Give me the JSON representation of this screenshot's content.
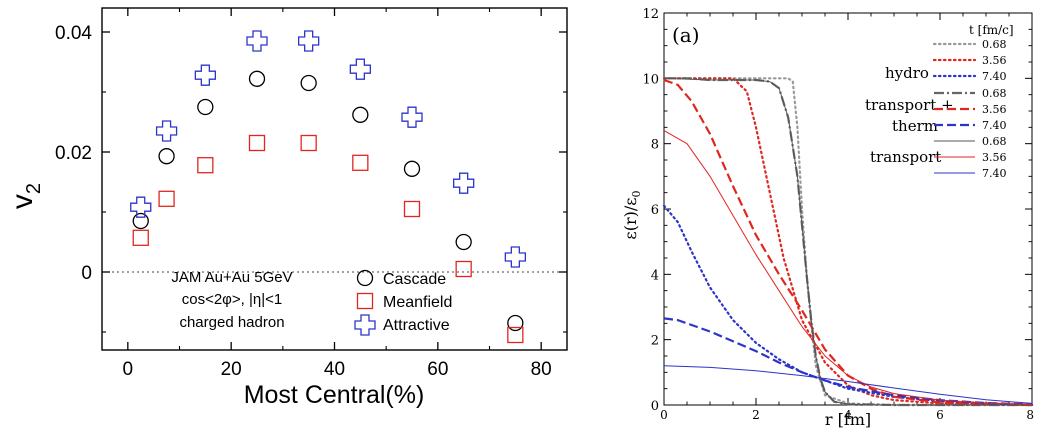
{
  "chart_data": [
    {
      "type": "scatter",
      "xlabel": "Most Central(%)",
      "ylabel": "v",
      "ylabel_sub": "2",
      "xlim": [
        -5,
        85
      ],
      "ylim": [
        -0.013,
        0.044
      ],
      "xticks": [
        0,
        20,
        40,
        60,
        80
      ],
      "yticks": [
        0,
        0.02,
        0.04
      ],
      "ytick_labels": [
        "0",
        "0.02",
        "0.04"
      ],
      "zero_line": true,
      "annotation": [
        "JAM Au+Au 5GeV",
        "cos<2φ>, |η|<1",
        "charged hadron"
      ],
      "legend_position": "bottom-center",
      "series": [
        {
          "name": "Cascade",
          "marker": "circle",
          "color": "#000000",
          "x": [
            2.5,
            7.5,
            15,
            25,
            35,
            45,
            55,
            65,
            75
          ],
          "y": [
            0.0085,
            0.0193,
            0.0275,
            0.0322,
            0.0315,
            0.0262,
            0.0172,
            0.005,
            -0.0085
          ]
        },
        {
          "name": "Meanfield",
          "marker": "square",
          "color": "#e0261f",
          "x": [
            2.5,
            7.5,
            15,
            25,
            35,
            45,
            55,
            65,
            75
          ],
          "y": [
            0.0057,
            0.0122,
            0.0178,
            0.0215,
            0.0215,
            0.0182,
            0.0105,
            0.0005,
            -0.0105
          ]
        },
        {
          "name": "Attractive",
          "marker": "cross",
          "color": "#2b35c8",
          "x": [
            2.5,
            7.5,
            15,
            25,
            35,
            45,
            55,
            65,
            75
          ],
          "y": [
            0.0108,
            0.0235,
            0.0328,
            0.0385,
            0.0385,
            0.0338,
            0.0258,
            0.0148,
            0.0025
          ]
        }
      ]
    },
    {
      "type": "line",
      "panel_label": "(a)",
      "xlabel": "r [fm]",
      "ylabel": "ε(r)/ε",
      "ylabel_sub": "0",
      "xlim": [
        0,
        8
      ],
      "ylim": [
        0,
        12
      ],
      "xticks": [
        0,
        2,
        4,
        6,
        8
      ],
      "yticks": [
        0,
        2,
        4,
        6,
        8,
        10,
        12
      ],
      "legend_title": "t [fm/c]",
      "legend_groups": [
        "hydro",
        "transport +",
        "therm",
        "transport"
      ],
      "legend_position": "top-right",
      "series": [
        {
          "name": "0.68",
          "group": "hydro",
          "color": "#9a9a9a",
          "style": "dot",
          "x": [
            0,
            1,
            2,
            2.6,
            2.7,
            2.8,
            2.9,
            3.0,
            3.1,
            3.2,
            3.3,
            3.5,
            4,
            5,
            6,
            8
          ],
          "y": [
            10,
            10,
            10,
            10,
            10,
            9.9,
            8.5,
            6,
            4,
            2.5,
            1.2,
            0.3,
            0.05,
            0,
            0,
            0
          ]
        },
        {
          "name": "3.56",
          "group": "hydro",
          "color": "#e0261f",
          "style": "dot",
          "x": [
            0,
            1,
            1.5,
            1.8,
            2.0,
            2.3,
            2.6,
            3.0,
            3.5,
            4,
            4.5,
            5,
            6,
            8
          ],
          "y": [
            10,
            10,
            10,
            9.6,
            8.5,
            6.5,
            4.5,
            2.6,
            1.3,
            0.6,
            0.3,
            0.15,
            0.05,
            0
          ]
        },
        {
          "name": "7.40",
          "group": "hydro",
          "color": "#2b35c8",
          "style": "dot",
          "x": [
            0,
            0.3,
            0.6,
            1.0,
            1.5,
            2.0,
            2.5,
            3.0,
            3.5,
            4,
            5,
            6,
            7,
            8
          ],
          "y": [
            6.1,
            5.6,
            4.7,
            3.6,
            2.6,
            1.9,
            1.4,
            1.0,
            0.75,
            0.5,
            0.25,
            0.12,
            0.05,
            0
          ]
        },
        {
          "name": "0.68",
          "group": "transport + therm",
          "color": "#666666",
          "style": "dashdot",
          "x": [
            0,
            0.5,
            1,
            1.5,
            2.0,
            2.3,
            2.5,
            2.7,
            2.9,
            3.0,
            3.1,
            3.2,
            3.3,
            3.4,
            3.5,
            3.7,
            4,
            5,
            8
          ],
          "y": [
            10,
            10,
            9.95,
            9.95,
            9.95,
            9.9,
            9.7,
            8.8,
            7,
            5.5,
            4,
            2.6,
            1.5,
            0.8,
            0.4,
            0.1,
            0.02,
            0,
            0
          ]
        },
        {
          "name": "3.56",
          "group": "transport + therm",
          "color": "#e0261f",
          "style": "dash",
          "x": [
            0,
            0.3,
            0.6,
            1.0,
            1.5,
            2.0,
            2.5,
            3.0,
            3.5,
            4,
            4.5,
            5,
            6,
            7,
            8
          ],
          "y": [
            9.95,
            9.8,
            9.3,
            8.3,
            6.7,
            5.2,
            4.0,
            2.9,
            1.7,
            0.9,
            0.5,
            0.25,
            0.08,
            0.02,
            0
          ]
        },
        {
          "name": "7.40",
          "group": "transport + therm",
          "color": "#2b35c8",
          "style": "dash",
          "x": [
            0,
            0.3,
            0.6,
            1.0,
            1.5,
            2.0,
            2.5,
            3.0,
            3.5,
            4,
            5,
            6,
            7,
            8
          ],
          "y": [
            2.65,
            2.6,
            2.45,
            2.25,
            1.95,
            1.65,
            1.3,
            1.0,
            0.75,
            0.55,
            0.3,
            0.15,
            0.06,
            0.02
          ]
        },
        {
          "name": "0.68",
          "group": "transport",
          "color": "#555555",
          "style": "solid",
          "x": [
            0,
            1,
            2.0,
            2.3,
            2.5,
            2.7,
            2.9,
            3.0,
            3.1,
            3.2,
            3.3,
            3.4,
            3.5,
            3.7,
            4,
            5,
            8
          ],
          "y": [
            10,
            9.95,
            9.95,
            9.9,
            9.7,
            8.8,
            7,
            5.5,
            4,
            2.6,
            1.5,
            0.8,
            0.4,
            0.1,
            0.02,
            0,
            0
          ]
        },
        {
          "name": "3.56",
          "group": "transport",
          "color": "#e0261f",
          "style": "solid",
          "x": [
            0,
            0.5,
            1.0,
            1.5,
            2.0,
            2.5,
            3.0,
            3.5,
            4,
            4.5,
            5,
            6,
            7,
            8
          ],
          "y": [
            8.4,
            8.0,
            7.0,
            5.8,
            4.6,
            3.5,
            2.4,
            1.5,
            0.9,
            0.55,
            0.35,
            0.15,
            0.06,
            0.02
          ]
        },
        {
          "name": "7.40",
          "group": "transport",
          "color": "#2b35c8",
          "style": "solid",
          "x": [
            0,
            1,
            2,
            3,
            4,
            5,
            6,
            7,
            8
          ],
          "y": [
            1.2,
            1.15,
            1.05,
            0.9,
            0.72,
            0.52,
            0.33,
            0.16,
            0.05
          ]
        }
      ]
    }
  ]
}
